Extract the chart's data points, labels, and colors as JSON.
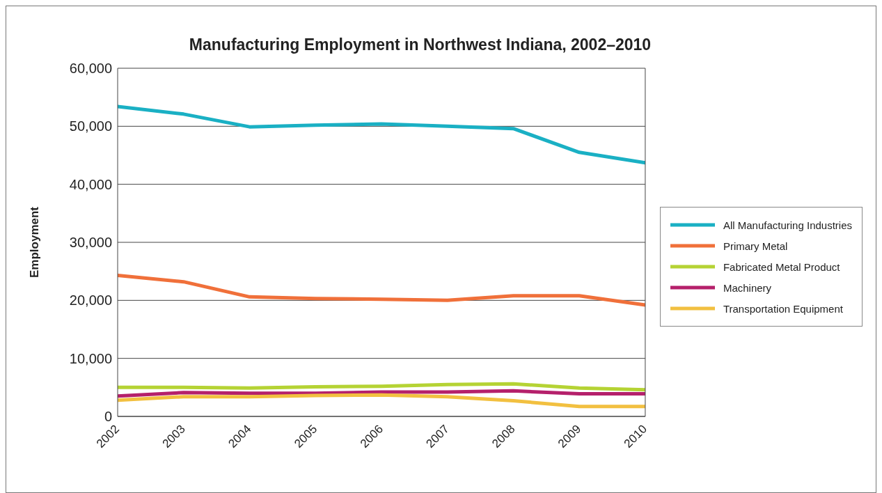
{
  "chart_data": {
    "type": "line",
    "title": "Manufacturing Employment in Northwest Indiana, 2002–2010",
    "ylabel": "Employment",
    "x": [
      2002,
      2003,
      2004,
      2005,
      2006,
      2007,
      2008,
      2009,
      2010
    ],
    "xlim": [
      2002,
      2010
    ],
    "xticks": [
      2002,
      2003,
      2004,
      2005,
      2006,
      2007,
      2008,
      2009,
      2010
    ],
    "ylim": [
      0,
      60000
    ],
    "yticks": [
      {
        "value": 0,
        "label": "0"
      },
      {
        "value": 10000,
        "label": "10,000"
      },
      {
        "value": 20000,
        "label": "20,000"
      },
      {
        "value": 30000,
        "label": "30,000"
      },
      {
        "value": 40000,
        "label": "40,000"
      },
      {
        "value": 50000,
        "label": "50,000"
      },
      {
        "value": 60000,
        "label": "60,000"
      }
    ],
    "grid": "y",
    "legend": "right",
    "marker": "none",
    "line_style": "solid",
    "series": [
      {
        "name": "All Manufacturing Industries",
        "color": "#1ab0c4",
        "values": [
          53400,
          52100,
          49900,
          50200,
          50400,
          50000,
          49600,
          45500,
          43700
        ]
      },
      {
        "name": "Primary Metal",
        "color": "#f0703a",
        "values": [
          24300,
          23200,
          20600,
          20300,
          20200,
          20000,
          20800,
          20800,
          19200
        ]
      },
      {
        "name": "Fabricated Metal Product",
        "color": "#b5d334",
        "values": [
          5000,
          5000,
          4900,
          5100,
          5200,
          5500,
          5600,
          4900,
          4600
        ]
      },
      {
        "name": "Machinery",
        "color": "#b5206b",
        "values": [
          3500,
          4100,
          4000,
          4000,
          4200,
          4200,
          4400,
          3900,
          3900
        ]
      },
      {
        "name": "Transportation Equipment",
        "color": "#f2c040",
        "values": [
          2800,
          3400,
          3400,
          3600,
          3700,
          3400,
          2700,
          1700,
          1700
        ]
      }
    ]
  }
}
